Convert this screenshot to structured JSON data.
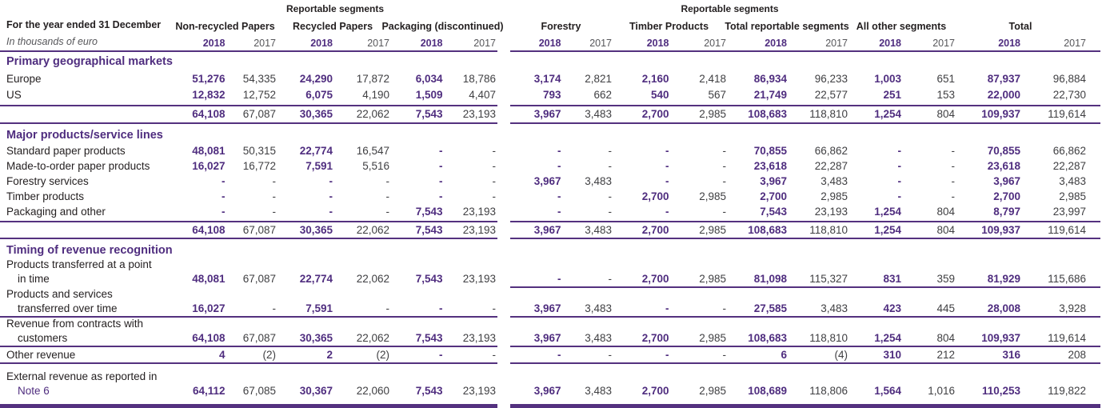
{
  "table": {
    "title": "For the year ended 31 December",
    "unit_note": "In thousands of euro",
    "super_headers": [
      "Reportable segments",
      "Reportable segments"
    ],
    "groups": [
      "Non-recycled Papers",
      "Recycled Papers",
      "Packaging (discontinued)",
      "Forestry",
      "Timber Products",
      "Total reportable segments",
      "All other segments",
      "Total"
    ],
    "years": [
      "2018",
      "2017"
    ],
    "colors": {
      "accent_purple": "#4f2d7f"
    },
    "sections": [
      {
        "heading": "Primary geographical markets",
        "rows": [
          {
            "label": "Europe",
            "values": [
              "51,276",
              "54,335",
              "24,290",
              "17,872",
              "6,034",
              "18,786",
              "3,174",
              "2,821",
              "2,160",
              "2,418",
              "86,934",
              "96,233",
              "1,003",
              "651",
              "87,937",
              "96,884"
            ]
          },
          {
            "label": "US",
            "values": [
              "12,832",
              "12,752",
              "6,075",
              "4,190",
              "1,509",
              "4,407",
              "793",
              "662",
              "540",
              "567",
              "21,749",
              "22,577",
              "251",
              "153",
              "22,000",
              "22,730"
            ]
          },
          {
            "label": "",
            "total": true,
            "rule_before": true,
            "rule_after": "full",
            "values": [
              "64,108",
              "67,087",
              "30,365",
              "22,062",
              "7,543",
              "23,193",
              "3,967",
              "3,483",
              "2,700",
              "2,985",
              "108,683",
              "118,810",
              "1,254",
              "804",
              "109,937",
              "119,614"
            ]
          }
        ]
      },
      {
        "heading": "Major products/service lines",
        "rows": [
          {
            "label": "Standard paper products",
            "values": [
              "48,081",
              "50,315",
              "22,774",
              "16,547",
              "-",
              "-",
              "-",
              "-",
              "-",
              "-",
              "70,855",
              "66,862",
              "-",
              "-",
              "70,855",
              "66,862"
            ]
          },
          {
            "label": "Made-to-order paper products",
            "values": [
              "16,027",
              "16,772",
              "7,591",
              "5,516",
              "-",
              "-",
              "-",
              "-",
              "-",
              "-",
              "23,618",
              "22,287",
              "-",
              "-",
              "23,618",
              "22,287"
            ]
          },
          {
            "label": "Forestry services",
            "values": [
              "-",
              "-",
              "-",
              "-",
              "-",
              "-",
              "3,967",
              "3,483",
              "-",
              "-",
              "3,967",
              "3,483",
              "-",
              "-",
              "3,967",
              "3,483"
            ]
          },
          {
            "label": "Timber products",
            "values": [
              "-",
              "-",
              "-",
              "-",
              "-",
              "-",
              "-",
              "-",
              "2,700",
              "2,985",
              "2,700",
              "2,985",
              "-",
              "-",
              "2,700",
              "2,985"
            ]
          },
          {
            "label": "Packaging and other",
            "values": [
              "-",
              "-",
              "-",
              "-",
              "7,543",
              "23,193",
              "-",
              "-",
              "-",
              "-",
              "7,543",
              "23,193",
              "1,254",
              "804",
              "8,797",
              "23,997"
            ]
          },
          {
            "label": "",
            "total": true,
            "rule_before": true,
            "rule_after": "full",
            "values": [
              "64,108",
              "67,087",
              "30,365",
              "22,062",
              "7,543",
              "23,193",
              "3,967",
              "3,483",
              "2,700",
              "2,985",
              "108,683",
              "118,810",
              "1,254",
              "804",
              "109,937",
              "119,614"
            ]
          }
        ]
      },
      {
        "heading": "Timing of revenue recognition",
        "rows": [
          {
            "label": "Products transferred at a point",
            "label2": "in time",
            "rule_after": "right",
            "values": [
              "48,081",
              "67,087",
              "22,774",
              "22,062",
              "7,543",
              "23,193",
              "-",
              "-",
              "2,700",
              "2,985",
              "81,098",
              "115,327",
              "831",
              "359",
              "81,929",
              "115,686"
            ]
          },
          {
            "label": "Products and services",
            "label2": "transferred over time",
            "rule_after": "full",
            "values": [
              "16,027",
              "-",
              "7,591",
              "-",
              "-",
              "-",
              "3,967",
              "3,483",
              "-",
              "-",
              "27,585",
              "3,483",
              "423",
              "445",
              "28,008",
              "3,928"
            ]
          },
          {
            "label": "Revenue from contracts with",
            "label2": "customers",
            "rule_after": "full",
            "values": [
              "64,108",
              "67,087",
              "30,365",
              "22,062",
              "7,543",
              "23,193",
              "3,967",
              "3,483",
              "2,700",
              "2,985",
              "108,683",
              "118,810",
              "1,254",
              "804",
              "109,937",
              "119,614"
            ]
          },
          {
            "label": "Other revenue",
            "rule_after": "full",
            "values": [
              "4",
              "(2)",
              "2",
              "(2)",
              "-",
              "-",
              "-",
              "-",
              "-",
              "-",
              "6",
              "(4)",
              "310",
              "212",
              "316",
              "208"
            ]
          },
          {
            "label": "External revenue as reported in",
            "label2": "Note 6",
            "note_link": true,
            "gap_before": true,
            "rule_after": "thick",
            "values": [
              "64,112",
              "67,085",
              "30,367",
              "22,060",
              "7,543",
              "23,193",
              "3,967",
              "3,483",
              "2,700",
              "2,985",
              "108,689",
              "118,806",
              "1,564",
              "1,016",
              "110,253",
              "119,822"
            ]
          }
        ]
      }
    ]
  }
}
